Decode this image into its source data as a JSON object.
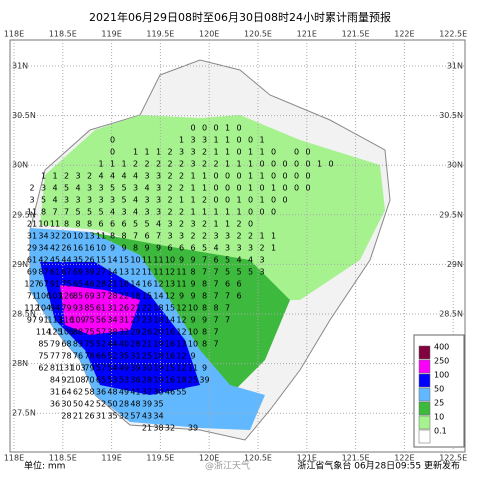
{
  "title": "2021年06月29日08时至06月30日08时24小时累计雨量预报",
  "lon_labels": [
    "118E",
    "118.5E",
    "119E",
    "119.5E",
    "120E",
    "120.5E",
    "121E",
    "121.5E",
    "122E",
    "122.5E"
  ],
  "lat_labels": [
    "31N",
    "30.5N",
    "30N",
    "29.5N",
    "29N",
    "28.5N",
    "28N",
    "27.5N"
  ],
  "legend": {
    "items": [
      {
        "label": 0.1,
        "color": "#ffffff"
      },
      {
        "label": 10,
        "color": "#a6f28f"
      },
      {
        "label": 25,
        "color": "#3dba3d"
      },
      {
        "label": 50,
        "color": "#61b8ff"
      },
      {
        "label": 100,
        "color": "#0000fe"
      },
      {
        "label": 250,
        "color": "#fa00fa"
      },
      {
        "label": 400,
        "color": "#800040"
      }
    ]
  },
  "unit": "单位: mm",
  "watermark": "@浙江天气",
  "footer": "浙江省气象台  06月28日09:55 更新发布",
  "values": [
    [
      null,
      null,
      null,
      null,
      null,
      null,
      null,
      null,
      null,
      null,
      null,
      null,
      null,
      null,
      0,
      0,
      0,
      1,
      0
    ],
    [
      null,
      null,
      null,
      null,
      null,
      null,
      null,
      0,
      null,
      null,
      null,
      null,
      null,
      1,
      3,
      3,
      1,
      1,
      0,
      0,
      1
    ],
    [
      null,
      null,
      null,
      null,
      null,
      null,
      null,
      0,
      null,
      1,
      1,
      1,
      2,
      3,
      3,
      2,
      1,
      1,
      0,
      1,
      1,
      0,
      null,
      0,
      0
    ],
    [
      null,
      null,
      null,
      null,
      null,
      null,
      1,
      1,
      1,
      2,
      2,
      2,
      2,
      2,
      3,
      2,
      2,
      1,
      1,
      1,
      0,
      0,
      0,
      0,
      0,
      1,
      0
    ],
    [
      null,
      1,
      1,
      2,
      3,
      2,
      4,
      4,
      4,
      4,
      3,
      3,
      2,
      2,
      1,
      1,
      0,
      0,
      0,
      1,
      1,
      0,
      0,
      0,
      0
    ],
    [
      2,
      3,
      4,
      5,
      4,
      3,
      3,
      5,
      5,
      3,
      4,
      3,
      2,
      2,
      1,
      1,
      0,
      0,
      0,
      1,
      0,
      1,
      0,
      0,
      0
    ],
    [
      3,
      5,
      4,
      3,
      3,
      3,
      3,
      3,
      5,
      4,
      3,
      3,
      2,
      1,
      1,
      2,
      0,
      0,
      1,
      0,
      1,
      0,
      0
    ],
    [
      11,
      8,
      7,
      7,
      5,
      5,
      5,
      4,
      3,
      4,
      3,
      3,
      2,
      2,
      1,
      1,
      1,
      1,
      1,
      0,
      0,
      0
    ],
    [
      21,
      10,
      11,
      8,
      8,
      8,
      6,
      6,
      6,
      5,
      5,
      4,
      3,
      2,
      3,
      2,
      1,
      1,
      2,
      0
    ],
    [
      31,
      34,
      32,
      20,
      10,
      13,
      11,
      8,
      8,
      7,
      6,
      7,
      3,
      3,
      2,
      2,
      3,
      3,
      2,
      2,
      1,
      1
    ],
    [
      29,
      34,
      42,
      26,
      16,
      16,
      10,
      9,
      9,
      8,
      9,
      9,
      6,
      6,
      6,
      5,
      4,
      3,
      3,
      3,
      2,
      1
    ],
    [
      61,
      42,
      45,
      44,
      35,
      26,
      15,
      14,
      15,
      10,
      11,
      11,
      10,
      9,
      9,
      7,
      6,
      5,
      4,
      4,
      3
    ],
    [
      69,
      87,
      61,
      67,
      69,
      39,
      27,
      14,
      13,
      12,
      11,
      11,
      12,
      11,
      8,
      7,
      7,
      5,
      5,
      5,
      3
    ],
    [
      127,
      67,
      91,
      75,
      65,
      46,
      28,
      21,
      18,
      14,
      16,
      12,
      13,
      11,
      9,
      8,
      7,
      6,
      6
    ],
    [
      71,
      106,
      101,
      126,
      85,
      69,
      37,
      28,
      22,
      18,
      15,
      14,
      12,
      9,
      9,
      8,
      7,
      7,
      6
    ],
    [
      112,
      104,
      94,
      79,
      93,
      85,
      61,
      31,
      26,
      21,
      22,
      18,
      15,
      12,
      10,
      8,
      8,
      7
    ],
    [
      97,
      91,
      113,
      116,
      109,
      75,
      56,
      34,
      31,
      27,
      23,
      18,
      14,
      12,
      9,
      9,
      7,
      7
    ],
    [
      null,
      114,
      125,
      106,
      88,
      75,
      57,
      38,
      32,
      29,
      26,
      20,
      16,
      12,
      10,
      8,
      7
    ],
    [
      null,
      85,
      79,
      68,
      83,
      75,
      52,
      44,
      40,
      28,
      21,
      19,
      16,
      13,
      10,
      8,
      7
    ],
    [
      null,
      75,
      77,
      78,
      76,
      78,
      66,
      52,
      35,
      31,
      25,
      18,
      16,
      12,
      9
    ],
    [
      null,
      62,
      81,
      131,
      103,
      79,
      57,
      54,
      49,
      39,
      30,
      19,
      15,
      12,
      11,
      9
    ],
    [
      null,
      null,
      84,
      92,
      108,
      70,
      65,
      53,
      53,
      36,
      28,
      19,
      16,
      18,
      25,
      39
    ],
    [
      null,
      null,
      31,
      64,
      62,
      58,
      36,
      48,
      49,
      41,
      37,
      30,
      46,
      55
    ],
    [
      null,
      null,
      36,
      30,
      50,
      42,
      52,
      50,
      28,
      48,
      39,
      35
    ],
    [
      null,
      null,
      null,
      28,
      21,
      26,
      31,
      35,
      32,
      57,
      43,
      34
    ],
    [
      null,
      null,
      null,
      null,
      null,
      null,
      null,
      null,
      null,
      null,
      21,
      38,
      32,
      null,
      39
    ]
  ]
}
